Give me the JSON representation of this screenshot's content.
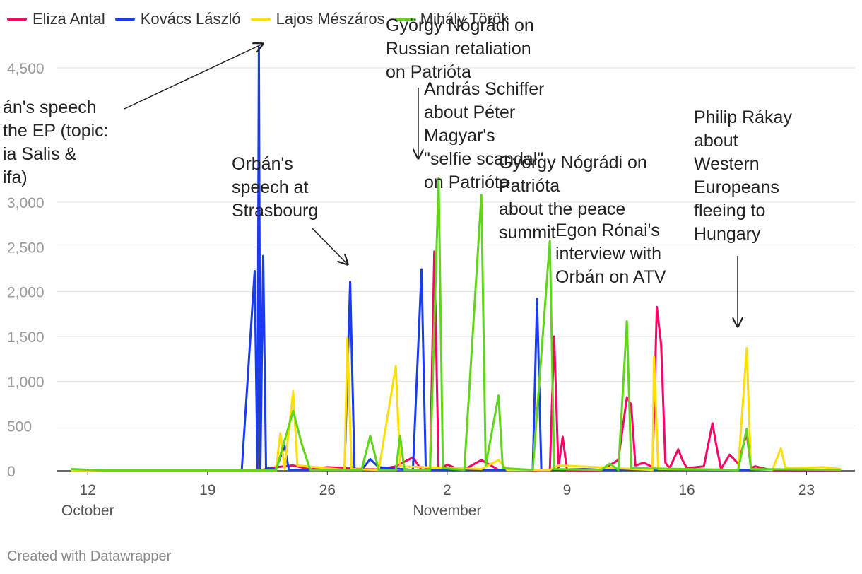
{
  "legend": [
    {
      "name": "Eliza Antal",
      "color": "#ff0066"
    },
    {
      "name": "Kovács László",
      "color": "#1a3cf0"
    },
    {
      "name": "Lajos Mészáros",
      "color": "#ffde00"
    },
    {
      "name": "Mihály Török",
      "color": "#5fd61a"
    }
  ],
  "footer": "Created with Datawrapper",
  "chart_data": {
    "type": "line",
    "title": "",
    "xlabel": "",
    "ylabel": "",
    "ylim": [
      0,
      4500
    ],
    "yticks": [
      0,
      500,
      1000,
      1500,
      2000,
      2500,
      3000,
      4500
    ],
    "xlim": [
      "2024-10-11",
      "2024-11-25"
    ],
    "xticks": [
      {
        "date": "2024-10-12",
        "label": "12",
        "month": "October"
      },
      {
        "date": "2024-10-19",
        "label": "19",
        "month": ""
      },
      {
        "date": "2024-10-26",
        "label": "26",
        "month": ""
      },
      {
        "date": "2024-11-02",
        "label": "2",
        "month": "November"
      },
      {
        "date": "2024-11-09",
        "label": "9",
        "month": ""
      },
      {
        "date": "2024-11-16",
        "label": "16",
        "month": ""
      },
      {
        "date": "2024-11-23",
        "label": "23",
        "month": ""
      }
    ],
    "grid": true,
    "legend_position": "top-left",
    "series": [
      {
        "name": "Eliza Antal",
        "color": "#ff0066",
        "points": [
          [
            "2024-10-11",
            5
          ],
          [
            "2024-10-22",
            5
          ],
          [
            "2024-10-23",
            40
          ],
          [
            "2024-10-24",
            60
          ],
          [
            "2024-10-25",
            15
          ],
          [
            "2024-10-26",
            40
          ],
          [
            "2024-10-28",
            20
          ],
          [
            "2024-10-29",
            15
          ],
          [
            "2024-10-30",
            50
          ],
          [
            "2024-10-31",
            150
          ],
          [
            "2024-10-31T12",
            10
          ],
          [
            "2024-11-01",
            20
          ],
          [
            "2024-11-01T06",
            2450
          ],
          [
            "2024-11-01T12",
            10
          ],
          [
            "2024-11-02",
            70
          ],
          [
            "2024-11-02T12",
            30
          ],
          [
            "2024-11-03",
            15
          ],
          [
            "2024-11-04",
            120
          ],
          [
            "2024-11-05",
            10
          ],
          [
            "2024-11-06",
            15
          ],
          [
            "2024-11-07",
            5
          ],
          [
            "2024-11-08",
            10
          ],
          [
            "2024-11-08T06",
            1500
          ],
          [
            "2024-11-08T12",
            30
          ],
          [
            "2024-11-08T18",
            380
          ],
          [
            "2024-11-09",
            5
          ],
          [
            "2024-11-11",
            5
          ],
          [
            "2024-11-12",
            120
          ],
          [
            "2024-11-12T12",
            820
          ],
          [
            "2024-11-12T18",
            740
          ],
          [
            "2024-11-13",
            60
          ],
          [
            "2024-11-13T12",
            90
          ],
          [
            "2024-11-14",
            40
          ],
          [
            "2024-11-14T06",
            1830
          ],
          [
            "2024-11-14T12",
            1410
          ],
          [
            "2024-11-14T18",
            90
          ],
          [
            "2024-11-15",
            30
          ],
          [
            "2024-11-15T12",
            240
          ],
          [
            "2024-11-15T18",
            120
          ],
          [
            "2024-11-16",
            30
          ],
          [
            "2024-11-17",
            50
          ],
          [
            "2024-11-17T12",
            530
          ],
          [
            "2024-11-17T18",
            260
          ],
          [
            "2024-11-18",
            20
          ],
          [
            "2024-11-18T12",
            180
          ],
          [
            "2024-11-19",
            80
          ],
          [
            "2024-11-19T12",
            420
          ],
          [
            "2024-11-19T18",
            30
          ],
          [
            "2024-11-20",
            50
          ],
          [
            "2024-11-21",
            5
          ],
          [
            "2024-11-25",
            5
          ]
        ]
      },
      {
        "name": "Kovács László",
        "color": "#1a3cf0",
        "points": [
          [
            "2024-10-11",
            10
          ],
          [
            "2024-10-21",
            10
          ],
          [
            "2024-10-21T18",
            2230
          ],
          [
            "2024-10-21T22",
            10
          ],
          [
            "2024-10-22",
            4730
          ],
          [
            "2024-10-22T02",
            10
          ],
          [
            "2024-10-22T06",
            2400
          ],
          [
            "2024-10-22T10",
            30
          ],
          [
            "2024-10-23",
            20
          ],
          [
            "2024-10-23T12",
            280
          ],
          [
            "2024-10-23T18",
            10
          ],
          [
            "2024-10-27",
            10
          ],
          [
            "2024-10-27T08",
            2110
          ],
          [
            "2024-10-27T14",
            20
          ],
          [
            "2024-10-28",
            10
          ],
          [
            "2024-10-28T12",
            130
          ],
          [
            "2024-10-29",
            40
          ],
          [
            "2024-10-31",
            10
          ],
          [
            "2024-10-31T12",
            2250
          ],
          [
            "2024-10-31T18",
            10
          ],
          [
            "2024-11-04",
            10
          ],
          [
            "2024-11-07",
            10
          ],
          [
            "2024-11-07T06",
            1920
          ],
          [
            "2024-11-07T12",
            10
          ],
          [
            "2024-11-10",
            20
          ],
          [
            "2024-11-11",
            10
          ],
          [
            "2024-11-14",
            10
          ],
          [
            "2024-11-16",
            10
          ],
          [
            "2024-11-25",
            10
          ]
        ]
      },
      {
        "name": "Lajos Mészáros",
        "color": "#ffde00",
        "points": [
          [
            "2024-10-11",
            5
          ],
          [
            "2024-10-23",
            5
          ],
          [
            "2024-10-23T06",
            420
          ],
          [
            "2024-10-23T12",
            20
          ],
          [
            "2024-10-24",
            890
          ],
          [
            "2024-10-24T06",
            60
          ],
          [
            "2024-10-27",
            10
          ],
          [
            "2024-10-27T04",
            1480
          ],
          [
            "2024-10-27T10",
            20
          ],
          [
            "2024-10-29",
            10
          ],
          [
            "2024-10-30",
            1170
          ],
          [
            "2024-10-30T06",
            50
          ],
          [
            "2024-11-04",
            20
          ],
          [
            "2024-11-05",
            120
          ],
          [
            "2024-11-05T12",
            10
          ],
          [
            "2024-11-08",
            10
          ],
          [
            "2024-11-08T12",
            60
          ],
          [
            "2024-11-14",
            10
          ],
          [
            "2024-11-14T02",
            1270
          ],
          [
            "2024-11-14T08",
            20
          ],
          [
            "2024-11-19",
            10
          ],
          [
            "2024-11-19T12",
            1370
          ],
          [
            "2024-11-19T18",
            20
          ],
          [
            "2024-11-21",
            10
          ],
          [
            "2024-11-21T12",
            250
          ],
          [
            "2024-11-21T18",
            40
          ],
          [
            "2024-11-22",
            30
          ],
          [
            "2024-11-24",
            40
          ],
          [
            "2024-11-25",
            20
          ]
        ]
      },
      {
        "name": "Mihály Török",
        "color": "#5fd61a",
        "points": [
          [
            "2024-10-11",
            20
          ],
          [
            "2024-10-13",
            5
          ],
          [
            "2024-10-23",
            5
          ],
          [
            "2024-10-24",
            670
          ],
          [
            "2024-10-24T12",
            300
          ],
          [
            "2024-10-25",
            10
          ],
          [
            "2024-10-28",
            10
          ],
          [
            "2024-10-28T12",
            390
          ],
          [
            "2024-10-29",
            10
          ],
          [
            "2024-10-30",
            10
          ],
          [
            "2024-10-30T06",
            390
          ],
          [
            "2024-10-30T12",
            10
          ],
          [
            "2024-11-01",
            10
          ],
          [
            "2024-11-01T12",
            3270
          ],
          [
            "2024-11-01T18",
            30
          ],
          [
            "2024-11-03",
            10
          ],
          [
            "2024-11-04",
            3080
          ],
          [
            "2024-11-04T06",
            60
          ],
          [
            "2024-11-05",
            840
          ],
          [
            "2024-11-05T06",
            30
          ],
          [
            "2024-11-07",
            10
          ],
          [
            "2024-11-08",
            2570
          ],
          [
            "2024-11-08T06",
            20
          ],
          [
            "2024-11-11",
            10
          ],
          [
            "2024-11-11T12",
            80
          ],
          [
            "2024-11-12",
            10
          ],
          [
            "2024-11-12T12",
            1670
          ],
          [
            "2024-11-12T18",
            30
          ],
          [
            "2024-11-19",
            10
          ],
          [
            "2024-11-19T12",
            470
          ],
          [
            "2024-11-19T18",
            20
          ],
          [
            "2024-11-25",
            10
          ]
        ]
      }
    ],
    "annotations": [
      {
        "text": "án's speech\nthe EP (topic:\nia Salis &\nifa)",
        "arrow": true
      },
      {
        "text": "Orbán's\nspeech at\nStrasbourg",
        "arrow": true
      },
      {
        "text": "György Nógrádi on\nRussian retaliation\non Patrióta",
        "arrow": false
      },
      {
        "text": "András Schiffer\nabout Péter\nMagyar's\n\"selfie scandal\"\non Patrióta",
        "arrow": true
      },
      {
        "text": "György Nógrádi on\nPatrióta\nabout the peace\nsummit",
        "arrow": false
      },
      {
        "text": "Egon Rónai's\ninterview with\nOrbán on ATV",
        "arrow": false
      },
      {
        "text": "Philip Rákay\nabout\nWestern\nEuropeans\nfleeing to\nHungary",
        "arrow": true
      }
    ]
  }
}
